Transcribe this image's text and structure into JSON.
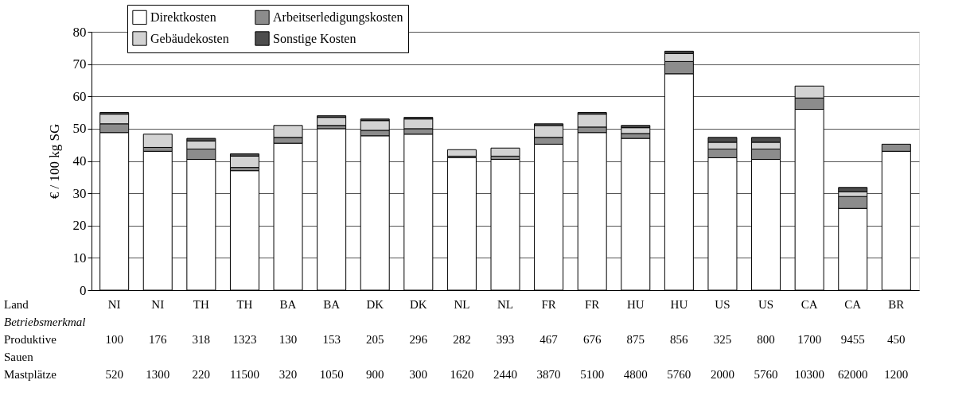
{
  "chart_data": {
    "type": "bar",
    "stacked": true,
    "ylabel": "€ / 100 kg SG",
    "categories": [
      "NI",
      "NI",
      "TH",
      "TH",
      "BA",
      "BA",
      "DK",
      "DK",
      "NL",
      "NL",
      "FR",
      "FR",
      "HU",
      "HU",
      "US",
      "US",
      "CA",
      "CA",
      "BR"
    ],
    "series": [
      {
        "name": "Direktkosten",
        "color": "#ffffff",
        "values": [
          48.8,
          43.0,
          40.5,
          37.0,
          45.5,
          50.0,
          47.8,
          48.3,
          41.0,
          40.5,
          45.2,
          48.8,
          47.0,
          67.0,
          41.0,
          40.5,
          56.0,
          25.3,
          43.0
        ]
      },
      {
        "name": "Arbeitserledigungskosten",
        "color": "#8c8c8c",
        "values": [
          2.7,
          1.2,
          3.2,
          1.0,
          1.8,
          1.0,
          1.7,
          1.7,
          0.5,
          1.0,
          2.1,
          1.7,
          1.5,
          3.8,
          2.7,
          3.2,
          3.5,
          3.7,
          2.2
        ]
      },
      {
        "name": "Gebäudekosten",
        "color": "#d3d3d3",
        "values": [
          3.0,
          4.1,
          2.5,
          3.5,
          3.7,
          2.5,
          3.0,
          3.0,
          2.0,
          2.5,
          3.7,
          4.0,
          1.8,
          2.5,
          2.1,
          2.1,
          3.7,
          1.5,
          null
        ]
      },
      {
        "name": "Sonstige Kosten",
        "color": "#4d4d4d",
        "values": [
          0.5,
          null,
          0.8,
          0.7,
          null,
          0.5,
          0.5,
          0.5,
          null,
          null,
          0.5,
          0.5,
          0.7,
          0.7,
          1.5,
          1.5,
          null,
          1.3,
          null
        ]
      }
    ],
    "ylim": [
      0,
      80
    ],
    "yticks": [
      0,
      10,
      20,
      30,
      40,
      50,
      60,
      70,
      80
    ],
    "grid": "y",
    "legend": "top left",
    "annotations": [
      "Land",
      "Betriebsmerkmal",
      "Produktive Sauen",
      "100",
      "176",
      "318",
      "1323",
      "130",
      "153",
      "205",
      "296",
      "282",
      "393",
      "467",
      "676",
      "875",
      "856",
      "325",
      "800",
      "1700",
      "9455",
      "450",
      "Mastplätze",
      "520",
      "1300",
      "220",
      "11500",
      "320",
      "1050",
      "900",
      "300",
      "1620",
      "2440",
      "3870",
      "5100",
      "4800",
      "5760",
      "2000",
      "5760",
      "10300",
      "62000",
      "1200"
    ]
  }
}
